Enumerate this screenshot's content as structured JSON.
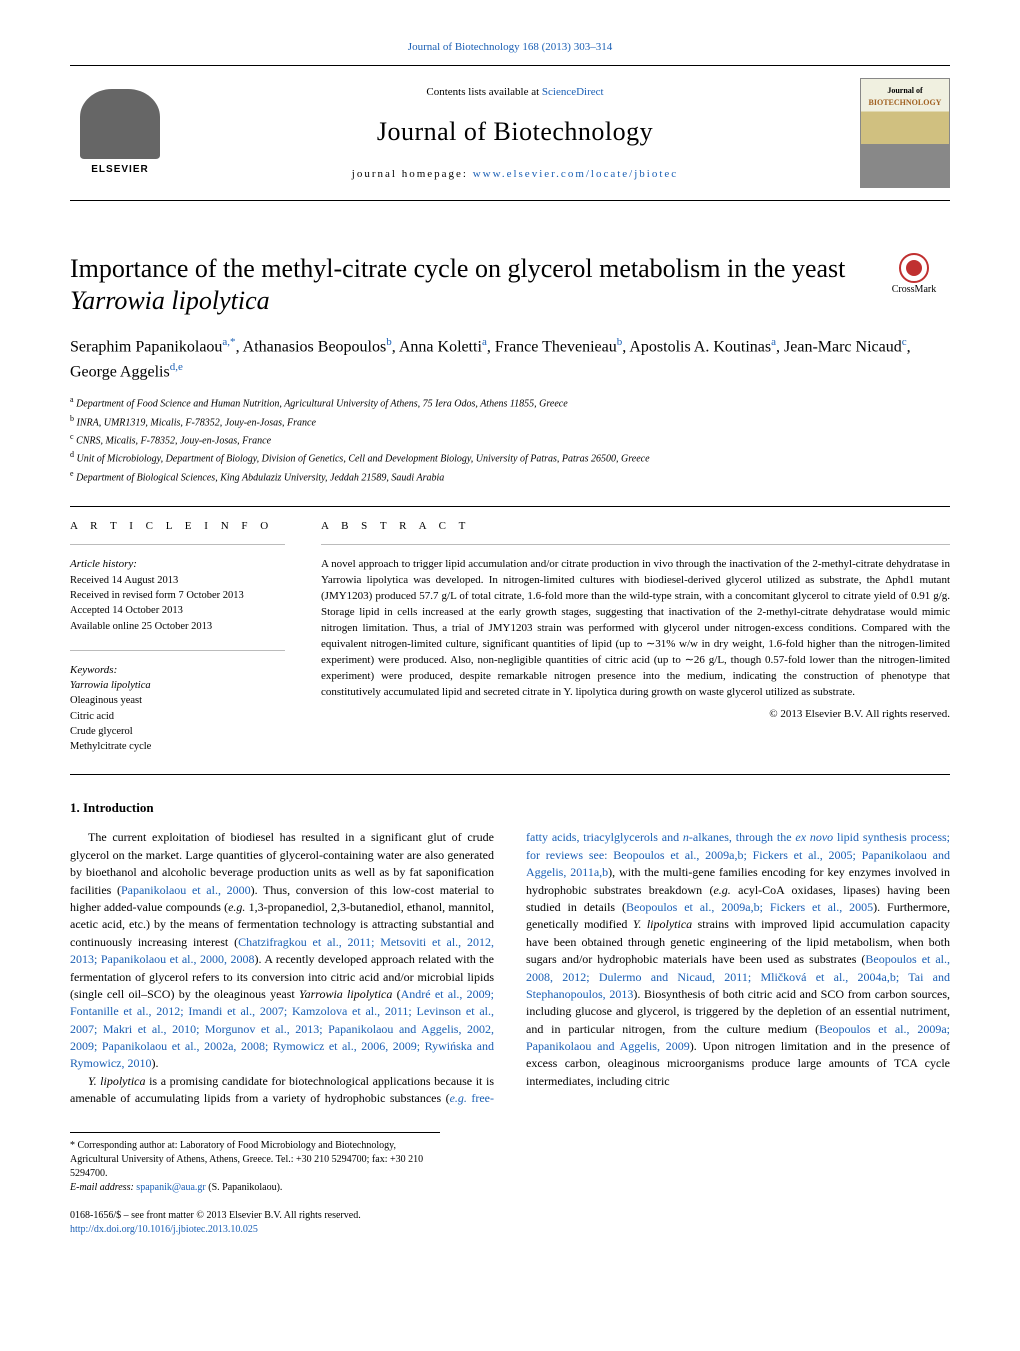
{
  "header": {
    "citation_link": "Journal of Biotechnology 168 (2013) 303–314",
    "contents_line_prefix": "Contents lists available at ",
    "contents_line_link": "ScienceDirect",
    "journal_name": "Journal of Biotechnology",
    "homepage_label": "journal homepage: ",
    "homepage_url": "www.elsevier.com/locate/jbiotec",
    "publisher_name": "ELSEVIER",
    "cover_label_top": "Journal of",
    "cover_label_main": "BIOTECHNOLOGY"
  },
  "crossmark_label": "CrossMark",
  "title_plain": "Importance of the methyl-citrate cycle on glycerol metabolism in the yeast ",
  "title_italic": "Yarrowia lipolytica",
  "authors_html": "Seraphim Papanikolaou<sup>a,*</sup>, Athanasios Beopoulos<sup>b</sup>, Anna Koletti<sup>a</sup>, France Thevenieau<sup>b</sup>, Apostolis A. Koutinas<sup>a</sup>, Jean-Marc Nicaud<sup>c</sup>, George Aggelis<sup>d,e</sup>",
  "affiliations": [
    "a Department of Food Science and Human Nutrition, Agricultural University of Athens, 75 Iera Odos, Athens 11855, Greece",
    "b INRA, UMR1319, Micalis, F-78352, Jouy-en-Josas, France",
    "c CNRS, Micalis, F-78352, Jouy-en-Josas, France",
    "d Unit of Microbiology, Department of Biology, Division of Genetics, Cell and Development Biology, University of Patras, Patras 26500, Greece",
    "e Department of Biological Sciences, King Abdulaziz University, Jeddah 21589, Saudi Arabia"
  ],
  "article_info": {
    "heading": "a r t i c l e   i n f o",
    "history_label": "Article history:",
    "history_lines": [
      "Received 14 August 2013",
      "Received in revised form 7 October 2013",
      "Accepted 14 October 2013",
      "Available online 25 October 2013"
    ],
    "keywords_label": "Keywords:",
    "keywords": [
      "Yarrowia lipolytica",
      "Oleaginous yeast",
      "Citric acid",
      "Crude glycerol",
      "Methylcitrate cycle"
    ]
  },
  "abstract": {
    "heading": "a b s t r a c t",
    "text": "A novel approach to trigger lipid accumulation and/or citrate production in vivo through the inactivation of the 2-methyl-citrate dehydratase in Yarrowia lipolytica was developed. In nitrogen-limited cultures with biodiesel-derived glycerol utilized as substrate, the Δphd1 mutant (JMY1203) produced 57.7 g/L of total citrate, 1.6-fold more than the wild-type strain, with a concomitant glycerol to citrate yield of 0.91 g/g. Storage lipid in cells increased at the early growth stages, suggesting that inactivation of the 2-methyl-citrate dehydratase would mimic nitrogen limitation. Thus, a trial of JMY1203 strain was performed with glycerol under nitrogen-excess conditions. Compared with the equivalent nitrogen-limited culture, significant quantities of lipid (up to ∼31% w/w in dry weight, 1.6-fold higher than the nitrogen-limited experiment) were produced. Also, non-negligible quantities of citric acid (up to ∼26 g/L, though 0.57-fold lower than the nitrogen-limited experiment) were produced, despite remarkable nitrogen presence into the medium, indicating the construction of phenotype that constitutively accumulated lipid and secreted citrate in Y. lipolytica during growth on waste glycerol utilized as substrate.",
    "copyright": "© 2013 Elsevier B.V. All rights reserved."
  },
  "section_heading": "1. Introduction",
  "body_paragraphs": [
    "The current exploitation of biodiesel has resulted in a significant glut of crude glycerol on the market. Large quantities of glycerol-containing water are also generated by bioethanol and alcoholic beverage production units as well as by fat saponification facilities (Papanikolaou et al., 2000). Thus, conversion of this low-cost material to higher added-value compounds (e.g. 1,3-propanediol, 2,3-butanediol, ethanol, mannitol, acetic acid, etc.) by the means of fermentation technology is attracting substantial and continuously increasing interest (Chatzifragkou et al., 2011; Metsoviti et al., 2012, 2013; Papanikolaou et al., 2000, 2008). A recently developed approach related with the fermentation of glycerol refers to its conversion into citric acid and/or microbial lipids (single cell oil–SCO) by the oleaginous yeast Yarrowia lipolytica (André et al., 2009; Fontanille et al., 2012; Imandi et al., 2007; Kamzolova et al., 2011; Levinson et al., 2007; Makri et al., 2010; Morgunov et al., 2013; Papanikolaou and Aggelis, 2002, 2009; Papanikolaou et al., 2002a, 2008; Rymowicz et al., 2006, 2009; Rywińska and Rymowicz, 2010).",
    "Y. lipolytica is a promising candidate for biotechnological applications because it is amenable of accumulating lipids from a variety of hydrophobic substances (e.g. free-fatty acids, triacylglycerols and n-alkanes, through the ex novo lipid synthesis process; for reviews see: Beopoulos et al., 2009a,b; Fickers et al., 2005; Papanikolaou and Aggelis, 2011a,b), with the multi-gene families encoding for key enzymes involved in hydrophobic substrates breakdown (e.g. acyl-CoA oxidases, lipases) having been studied in details (Beopoulos et al., 2009a,b; Fickers et al., 2005). Furthermore, genetically modified Y. lipolytica strains with improved lipid accumulation capacity have been obtained through genetic engineering of the lipid metabolism, when both sugars and/or hydrophobic materials have been used as substrates (Beopoulos et al., 2008, 2012; Dulermo and Nicaud, 2011; Mličková et al., 2004a,b; Tai and Stephanopoulos, 2013). Biosynthesis of both citric acid and SCO from carbon sources, including glucose and glycerol, is triggered by the depletion of an essential nutriment, and in particular nitrogen, from the culture medium (Beopoulos et al., 2009a; Papanikolaou and Aggelis, 2009). Upon nitrogen limitation and in the presence of excess carbon, oleaginous microorganisms produce large amounts of TCA cycle intermediates, including citric"
  ],
  "footnotes": {
    "corresponding": "* Corresponding author at: Laboratory of Food Microbiology and Biotechnology, Agricultural University of Athens, Athens, Greece. Tel.: +30 210 5294700; fax: +30 210 5294700.",
    "email_label": "E-mail address: ",
    "email": "spapanik@aua.gr",
    "email_suffix": " (S. Papanikolaou)."
  },
  "bottom_meta": {
    "issn_line": "0168-1656/$ – see front matter © 2013 Elsevier B.V. All rights reserved.",
    "doi": "http://dx.doi.org/10.1016/j.jbiotec.2013.10.025"
  },
  "colors": {
    "link": "#1a5fb4",
    "text": "#000000",
    "crossmark_ring": "#c03030"
  }
}
